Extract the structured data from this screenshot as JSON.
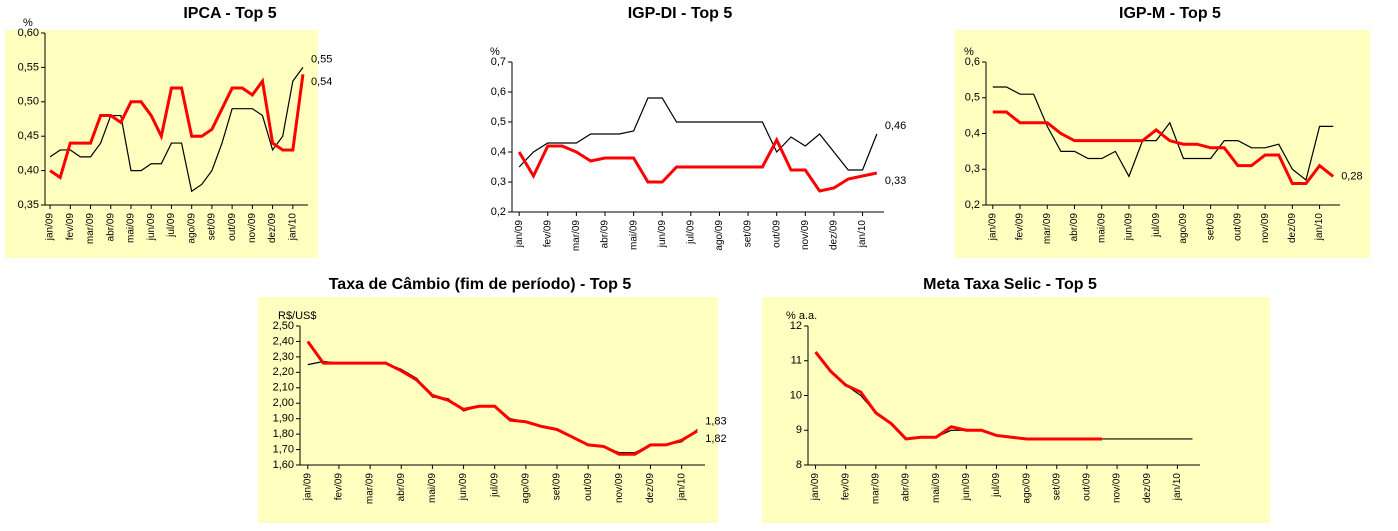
{
  "chart_data": [
    {
      "type": "line",
      "title": "IPCA - Top 5",
      "y_label": "%",
      "background": "#ffffc0",
      "categories": [
        "jan/09",
        null,
        "fev/09",
        null,
        "mar/09",
        null,
        "abr/09",
        null,
        "mai/09",
        null,
        "jun/09",
        null,
        "jul/09",
        null,
        "ago/09",
        null,
        "set/09",
        null,
        "out/09",
        null,
        "nov/09",
        null,
        "dez/09",
        null,
        "jan/10",
        null
      ],
      "ylim": [
        0.35,
        0.6
      ],
      "yticks": [
        {
          "value": 0.35,
          "label": "0,35"
        },
        {
          "value": 0.4,
          "label": "0,40"
        },
        {
          "value": 0.45,
          "label": "0,45"
        },
        {
          "value": 0.5,
          "label": "0,50"
        },
        {
          "value": 0.55,
          "label": "0,55"
        },
        {
          "value": 0.6,
          "label": "0,60"
        }
      ],
      "series": [
        {
          "color": "#000000",
          "width": 1.2,
          "end_label": "0,55",
          "values": [
            0.42,
            0.43,
            0.43,
            0.42,
            0.42,
            0.44,
            0.48,
            0.48,
            0.4,
            0.4,
            0.41,
            0.41,
            0.44,
            0.44,
            0.37,
            0.38,
            0.4,
            0.44,
            0.49,
            0.49,
            0.49,
            0.48,
            0.43,
            0.45,
            0.53,
            0.55
          ]
        },
        {
          "color": "#ff0000",
          "width": 3,
          "end_label": "0,54",
          "values": [
            0.4,
            0.39,
            0.44,
            0.44,
            0.44,
            0.48,
            0.48,
            0.47,
            0.5,
            0.5,
            0.48,
            0.45,
            0.52,
            0.52,
            0.45,
            0.45,
            0.46,
            0.49,
            0.52,
            0.52,
            0.51,
            0.53,
            0.44,
            0.43,
            0.43,
            0.54
          ]
        }
      ]
    },
    {
      "type": "line",
      "title": "IGP-DI - Top 5",
      "y_label": "%",
      "background": null,
      "categories": [
        "jan/09",
        null,
        "fev/09",
        null,
        "mar/09",
        null,
        "abr/09",
        null,
        "mai/09",
        null,
        "jun/09",
        null,
        "jul/09",
        null,
        "ago/09",
        null,
        "set/09",
        null,
        "out/09",
        null,
        "nov/09",
        null,
        "dez/09",
        null,
        "jan/10",
        null
      ],
      "ylim": [
        0.2,
        0.7
      ],
      "yticks": [
        {
          "value": 0.2,
          "label": "0,2"
        },
        {
          "value": 0.3,
          "label": "0,3"
        },
        {
          "value": 0.4,
          "label": "0,4"
        },
        {
          "value": 0.5,
          "label": "0,5"
        },
        {
          "value": 0.6,
          "label": "0,6"
        },
        {
          "value": 0.7,
          "label": "0,7"
        }
      ],
      "series": [
        {
          "color": "#000000",
          "width": 1.2,
          "end_label": "0,46",
          "values": [
            0.35,
            0.4,
            0.43,
            0.43,
            0.43,
            0.46,
            0.46,
            0.46,
            0.47,
            0.58,
            0.58,
            0.5,
            0.5,
            0.5,
            0.5,
            0.5,
            0.5,
            0.5,
            0.4,
            0.45,
            0.42,
            0.46,
            0.4,
            0.34,
            0.34,
            0.46
          ]
        },
        {
          "color": "#ff0000",
          "width": 3,
          "end_label": "0,33",
          "values": [
            0.4,
            0.32,
            0.42,
            0.42,
            0.4,
            0.37,
            0.38,
            0.38,
            0.38,
            0.3,
            0.3,
            0.35,
            0.35,
            0.35,
            0.35,
            0.35,
            0.35,
            0.35,
            0.44,
            0.34,
            0.34,
            0.27,
            0.28,
            0.31,
            0.32,
            0.33
          ]
        }
      ]
    },
    {
      "type": "line",
      "title": "IGP-M - Top 5",
      "y_label": "%",
      "background": "#ffffc0",
      "categories": [
        "jan/09",
        null,
        "fev/09",
        null,
        "mar/09",
        null,
        "abr/09",
        null,
        "mai/09",
        null,
        "jun/09",
        null,
        "jul/09",
        null,
        "ago/09",
        null,
        "set/09",
        null,
        "out/09",
        null,
        "nov/09",
        null,
        "dez/09",
        null,
        "jan/10",
        null
      ],
      "ylim": [
        0.2,
        0.6
      ],
      "yticks": [
        {
          "value": 0.2,
          "label": "0,2"
        },
        {
          "value": 0.3,
          "label": "0,3"
        },
        {
          "value": 0.4,
          "label": "0,4"
        },
        {
          "value": 0.5,
          "label": "0,5"
        },
        {
          "value": 0.6,
          "label": "0,6"
        }
      ],
      "series": [
        {
          "color": "#000000",
          "width": 1.2,
          "values": [
            0.53,
            0.53,
            0.51,
            0.51,
            0.42,
            0.35,
            0.35,
            0.33,
            0.33,
            0.35,
            0.28,
            0.38,
            0.38,
            0.43,
            0.33,
            0.33,
            0.33,
            0.38,
            0.38,
            0.36,
            0.36,
            0.37,
            0.3,
            0.27,
            0.42,
            0.42
          ]
        },
        {
          "color": "#ff0000",
          "width": 3,
          "end_label": "0,28",
          "values": [
            0.46,
            0.46,
            0.43,
            0.43,
            0.43,
            0.4,
            0.38,
            0.38,
            0.38,
            0.38,
            0.38,
            0.38,
            0.41,
            0.38,
            0.37,
            0.37,
            0.36,
            0.36,
            0.31,
            0.31,
            0.34,
            0.34,
            0.26,
            0.26,
            0.31,
            0.28
          ]
        }
      ]
    },
    {
      "type": "line",
      "title": "Taxa de Câmbio (fim de período) - Top 5",
      "y_label": "R$/US$",
      "background": "#ffffc0",
      "categories": [
        "jan/09",
        null,
        "fev/09",
        null,
        "mar/09",
        null,
        "abr/09",
        null,
        "mai/09",
        null,
        "jun/09",
        null,
        "jul/09",
        null,
        "ago/09",
        null,
        "set/09",
        null,
        "out/09",
        null,
        "nov/09",
        null,
        "dez/09",
        null,
        "jan/10",
        null
      ],
      "ylim": [
        1.6,
        2.5
      ],
      "yticks": [
        {
          "value": 1.6,
          "label": "1,60"
        },
        {
          "value": 1.7,
          "label": "1,70"
        },
        {
          "value": 1.8,
          "label": "1,80"
        },
        {
          "value": 1.9,
          "label": "1,90"
        },
        {
          "value": 2.0,
          "label": "2,00"
        },
        {
          "value": 2.1,
          "label": "2,10"
        },
        {
          "value": 2.2,
          "label": "2,20"
        },
        {
          "value": 2.3,
          "label": "2,30"
        },
        {
          "value": 2.4,
          "label": "2,40"
        },
        {
          "value": 2.5,
          "label": "2,50"
        }
      ],
      "series": [
        {
          "color": "#000000",
          "width": 1.2,
          "end_label": "1,83",
          "values": [
            2.25,
            2.27,
            2.26,
            2.26,
            2.26,
            2.26,
            2.22,
            2.16,
            2.04,
            2.03,
            1.95,
            1.98,
            1.98,
            1.9,
            1.88,
            1.85,
            1.83,
            1.78,
            1.73,
            1.72,
            1.68,
            1.68,
            1.73,
            1.73,
            1.75,
            1.83
          ]
        },
        {
          "color": "#ff0000",
          "width": 3,
          "end_label": "1,82",
          "values": [
            2.4,
            2.26,
            2.26,
            2.26,
            2.26,
            2.26,
            2.21,
            2.15,
            2.05,
            2.02,
            1.96,
            1.98,
            1.98,
            1.89,
            1.88,
            1.85,
            1.83,
            1.78,
            1.73,
            1.72,
            1.67,
            1.67,
            1.73,
            1.73,
            1.76,
            1.82
          ]
        }
      ]
    },
    {
      "type": "line",
      "title": "Meta Taxa Selic - Top 5",
      "y_label": "% a.a.",
      "background": "#ffffc0",
      "categories": [
        "jan/09",
        null,
        "fev/09",
        null,
        "mar/09",
        null,
        "abr/09",
        null,
        "mai/09",
        null,
        "jun/09",
        null,
        "jul/09",
        null,
        "ago/09",
        null,
        "set/09",
        null,
        "out/09",
        null,
        "nov/09",
        null,
        "dez/09",
        null,
        "jan/10",
        null
      ],
      "ylim": [
        8,
        12
      ],
      "yticks": [
        8,
        9,
        10,
        11,
        12
      ],
      "series": [
        {
          "color": "#000000",
          "width": 1.2,
          "values": [
            11.25,
            10.7,
            10.3,
            10.0,
            9.5,
            9.2,
            8.75,
            8.8,
            8.8,
            9.0,
            9.0,
            9.0,
            8.85,
            8.8,
            8.75,
            8.75,
            8.75,
            8.75,
            8.75,
            8.75,
            8.75,
            8.75,
            8.75,
            8.75,
            8.75,
            8.75
          ]
        },
        {
          "color": "#ff0000",
          "width": 3,
          "values": [
            11.25,
            10.7,
            10.3,
            10.1,
            9.5,
            9.2,
            8.75,
            8.8,
            8.8,
            9.1,
            9.0,
            9.0,
            8.85,
            8.8,
            8.75,
            8.75,
            8.75,
            8.75,
            8.75,
            8.75,
            null,
            null,
            null,
            null,
            null,
            null
          ]
        }
      ]
    }
  ]
}
